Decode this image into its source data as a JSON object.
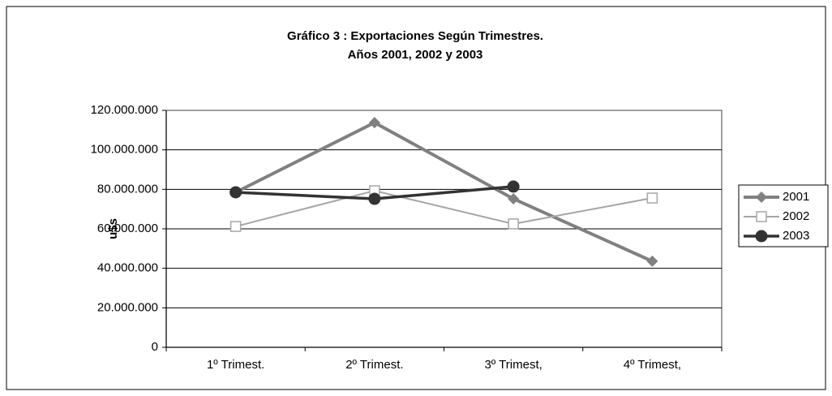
{
  "chart_data": {
    "type": "line",
    "title": "Gráfico 3 : Exportaciones Según Trimestres.",
    "subtitle": "Años 2001, 2002 y 2003",
    "y_label": "u$s",
    "categories": [
      "1º Trimest.",
      "2º Trimest.",
      "3º Trimest,",
      "4º Trimest,"
    ],
    "series": [
      {
        "name": "2001",
        "color": "#808080",
        "marker": "diamond",
        "line_width": 4,
        "values": [
          78500000,
          113800000,
          75200000,
          43600000
        ]
      },
      {
        "name": "2002",
        "color": "#a6a6a6",
        "marker": "square",
        "line_width": 2,
        "values": [
          61200000,
          79300000,
          62500000,
          75600000
        ]
      },
      {
        "name": "2003",
        "color": "#333333",
        "marker": "circle",
        "line_width": 3.5,
        "values": [
          78500000,
          75200000,
          81400000,
          null
        ]
      }
    ],
    "ylim": [
      0,
      120000000
    ],
    "yticks": [
      0,
      {
        "value": 20000000,
        "label": "20.000.000"
      },
      {
        "value": 40000000,
        "label": "40.000.000"
      },
      {
        "value": 60000000,
        "label": "60.000.000"
      },
      {
        "value": 80000000,
        "label": "80.000.000"
      },
      {
        "value": 100000000,
        "label": "100.000.000"
      },
      {
        "value": 120000000,
        "label": "120.000.000"
      }
    ],
    "grid": true,
    "legend": "right"
  }
}
